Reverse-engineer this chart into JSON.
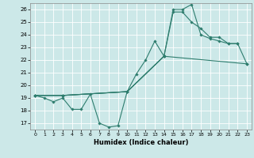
{
  "xlabel": "Humidex (Indice chaleur)",
  "bg_color": "#cce8e8",
  "grid_color": "#ffffff",
  "line_color": "#2e7d6e",
  "xlim": [
    -0.5,
    23.5
  ],
  "ylim": [
    16.5,
    26.5
  ],
  "xticks": [
    0,
    1,
    2,
    3,
    4,
    5,
    6,
    7,
    8,
    9,
    10,
    11,
    12,
    13,
    14,
    15,
    16,
    17,
    18,
    19,
    20,
    21,
    22,
    23
  ],
  "yticks": [
    17,
    18,
    19,
    20,
    21,
    22,
    23,
    24,
    25,
    26
  ],
  "series": [
    [
      [
        0,
        1,
        2,
        3,
        4,
        5,
        6,
        7,
        8,
        9,
        10,
        11,
        12,
        13,
        14
      ],
      [
        19.2,
        19.0,
        18.7,
        19.0,
        18.1,
        18.1,
        19.3,
        17.0,
        16.7,
        16.8,
        19.5,
        20.9,
        22.0,
        23.5,
        22.3
      ]
    ],
    [
      [
        0,
        3,
        10,
        14,
        15,
        16,
        17,
        18,
        19,
        20,
        21,
        22
      ],
      [
        19.2,
        19.2,
        19.5,
        22.3,
        26.0,
        26.0,
        26.4,
        24.0,
        23.7,
        23.5,
        23.3,
        23.3
      ]
    ],
    [
      [
        0,
        3,
        10,
        14,
        15,
        16,
        17,
        18,
        19,
        20,
        21,
        22,
        23
      ],
      [
        19.2,
        19.2,
        19.5,
        22.3,
        25.8,
        25.8,
        25.0,
        24.5,
        23.8,
        23.8,
        23.3,
        23.3,
        21.7
      ]
    ],
    [
      [
        0,
        3,
        10,
        14,
        23
      ],
      [
        19.2,
        19.2,
        19.5,
        22.3,
        21.7
      ]
    ]
  ]
}
